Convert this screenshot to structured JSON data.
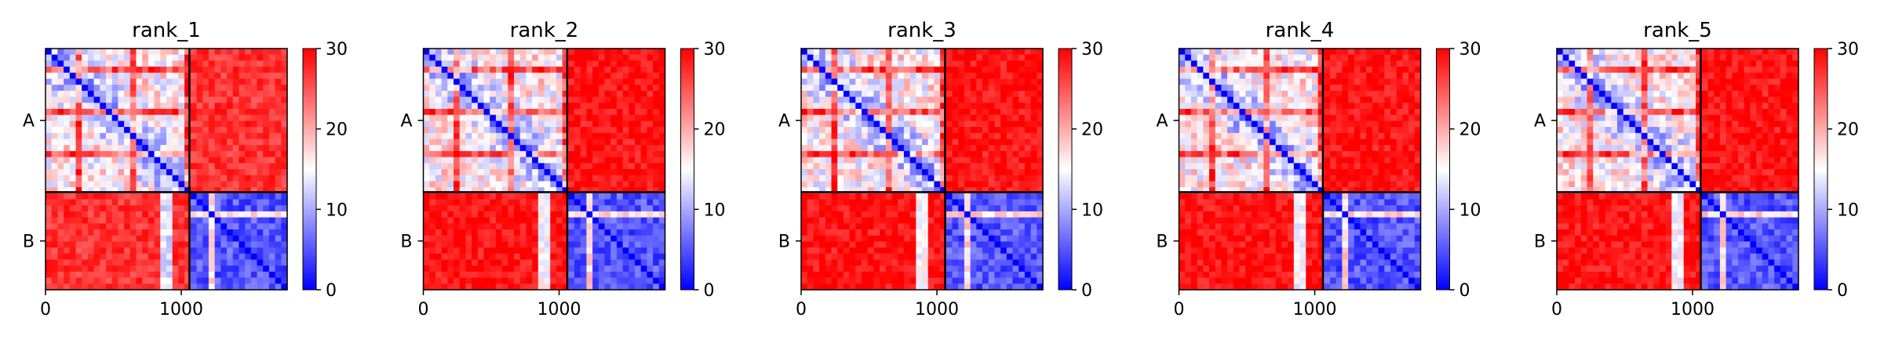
{
  "chart_data": {
    "type": "heatmap",
    "domains": [
      "A",
      "B"
    ],
    "domain_boundary": 1060,
    "x_range": [
      0,
      1780
    ],
    "x_ticks": [
      0,
      1000
    ],
    "x_tick_labels": [
      "0",
      "1000"
    ],
    "colorbar": {
      "min": 0,
      "max": 30,
      "ticks": [
        0,
        10,
        20,
        30
      ],
      "tick_labels": [
        "0",
        "10",
        "20",
        "30"
      ],
      "colormap": "bwr"
    },
    "colors": {
      "low": "#0000ff",
      "mid": "#ffffff",
      "high": "#ff0000",
      "boundary": "#000000"
    },
    "panels": [
      {
        "title": "rank_1",
        "inter_domain_mean": 27,
        "intra_a_mean": 9,
        "intra_b_mean": 5
      },
      {
        "title": "rank_2",
        "inter_domain_mean": 29,
        "intra_a_mean": 9,
        "intra_b_mean": 5
      },
      {
        "title": "rank_3",
        "inter_domain_mean": 29,
        "intra_a_mean": 9,
        "intra_b_mean": 5
      },
      {
        "title": "rank_4",
        "inter_domain_mean": 29,
        "intra_a_mean": 9,
        "intra_b_mean": 5
      },
      {
        "title": "rank_5",
        "inter_domain_mean": 29,
        "intra_a_mean": 9,
        "intra_b_mean": 5
      }
    ]
  }
}
